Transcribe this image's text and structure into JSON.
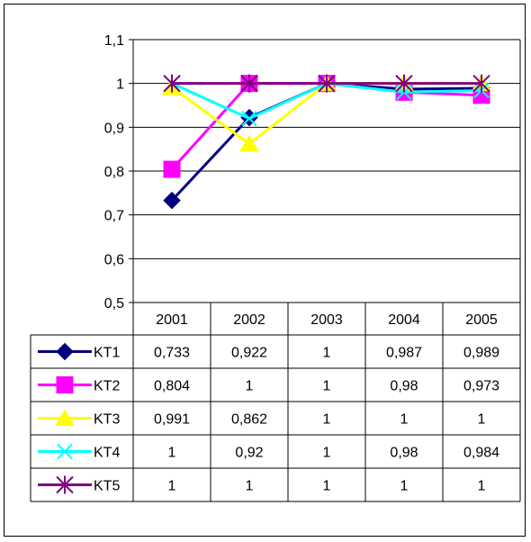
{
  "chart_data": {
    "type": "line",
    "title": "",
    "xlabel": "",
    "ylabel": "",
    "categories": [
      "2001",
      "2002",
      "2003",
      "2004",
      "2005"
    ],
    "ylim": [
      0.5,
      1.1
    ],
    "y_ticks": [
      "0,5",
      "0,6",
      "0,7",
      "0,8",
      "0,9",
      "1",
      "1,1"
    ],
    "grid": true,
    "legend": "data-table",
    "series": [
      {
        "name": "KT1",
        "values": [
          0.733,
          0.922,
          1,
          0.987,
          0.989
        ],
        "labels": [
          "0,733",
          "0,922",
          "1",
          "0,987",
          "0,989"
        ],
        "color": "#000080",
        "marker": "diamond"
      },
      {
        "name": "KT2",
        "values": [
          0.804,
          1,
          1,
          0.98,
          0.973
        ],
        "labels": [
          "0,804",
          "1",
          "1",
          "0,98",
          "0,973"
        ],
        "color": "#ff00ff",
        "marker": "square"
      },
      {
        "name": "KT3",
        "values": [
          0.991,
          0.862,
          1,
          1,
          1
        ],
        "labels": [
          "0,991",
          "0,862",
          "1",
          "1",
          "1"
        ],
        "color": "#ffff00",
        "marker": "triangle"
      },
      {
        "name": "KT4",
        "values": [
          1,
          0.92,
          1,
          0.98,
          0.984
        ],
        "labels": [
          "1",
          "0,92",
          "1",
          "0,98",
          "0,984"
        ],
        "color": "#00ffff",
        "marker": "x"
      },
      {
        "name": "KT5",
        "values": [
          1,
          1,
          1,
          1,
          1
        ],
        "labels": [
          "1",
          "1",
          "1",
          "1",
          "1"
        ],
        "color": "#800080",
        "marker": "star"
      }
    ]
  }
}
